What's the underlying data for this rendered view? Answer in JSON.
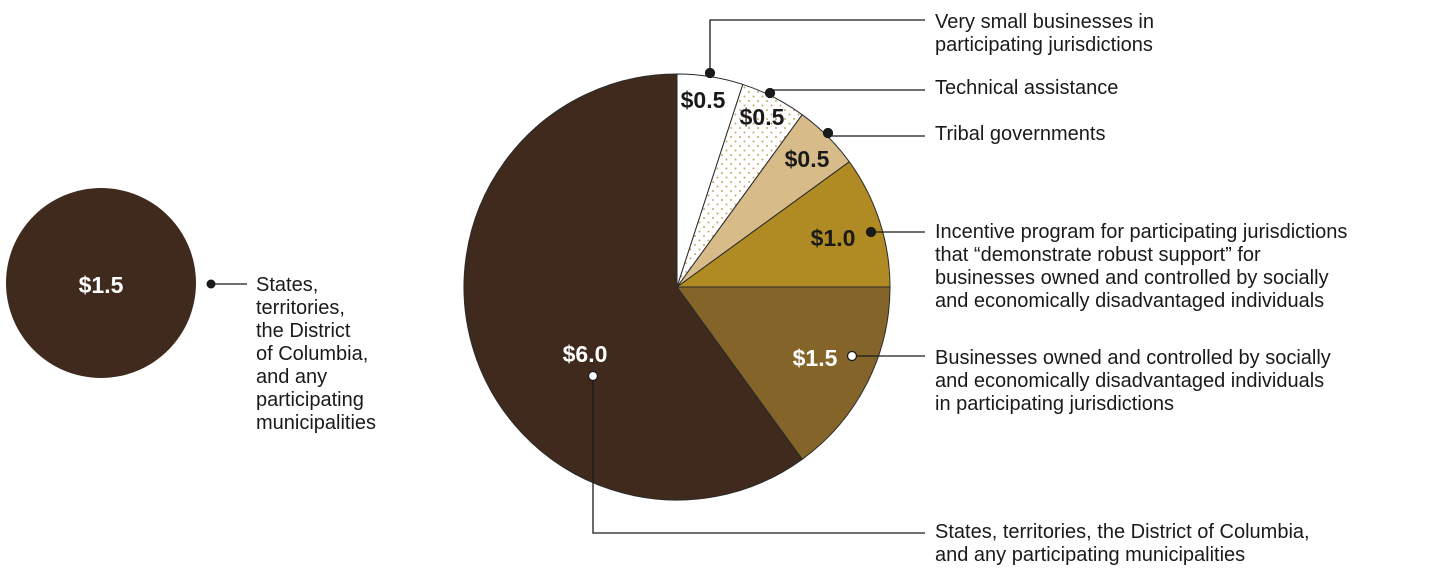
{
  "chart_data": [
    {
      "type": "pie",
      "unit": "$",
      "slices": [
        {
          "value_label": "$1.5",
          "value": 1.5,
          "color": "#3f2a1d",
          "label_color": "#ffffff",
          "label_lines": [
            "States,",
            "territories,",
            "the District",
            "of Columbia,",
            "and any",
            "participating",
            "municipalities"
          ]
        }
      ]
    },
    {
      "type": "pie",
      "unit": "$",
      "slices": [
        {
          "value_label": "$0.5",
          "value": 0.5,
          "color": "#ffffff",
          "pattern": "none",
          "label_color": "#1a1a1a",
          "marker_color": "#1a1a1a",
          "label_lines": [
            "Very small businesses in",
            "participating jurisdictions"
          ]
        },
        {
          "value_label": "$0.5",
          "value": 0.5,
          "color": "#ffffff",
          "pattern": "dots",
          "label_color": "#1a1a1a",
          "marker_color": "#1a1a1a",
          "label_lines": [
            "Technical assistance"
          ]
        },
        {
          "value_label": "$0.5",
          "value": 0.5,
          "color": "#d7bc8a",
          "pattern": "none",
          "label_color": "#1a1a1a",
          "marker_color": "#1a1a1a",
          "label_lines": [
            "Tribal governments"
          ]
        },
        {
          "value_label": "$1.0",
          "value": 1.0,
          "color": "#b08a22",
          "pattern": "none",
          "label_color": "#1a1a1a",
          "marker_color": "#1a1a1a",
          "label_lines": [
            "Incentive program for participating jurisdictions",
            "that “demonstrate robust support” for",
            "businesses owned and controlled by socially",
            "and economically disadvantaged individuals"
          ]
        },
        {
          "value_label": "$1.5",
          "value": 1.5,
          "color": "#85642a",
          "pattern": "none",
          "label_color": "#ffffff",
          "marker_color": "#ffffff",
          "label_lines": [
            "Businesses owned and controlled by socially",
            "and economically disadvantaged individuals",
            "in participating jurisdictions"
          ]
        },
        {
          "value_label": "$6.0",
          "value": 6.0,
          "color": "#3f2a1d",
          "pattern": "none",
          "label_color": "#ffffff",
          "marker_color": "#ffffff",
          "label_lines": [
            "States, territories, the District of Columbia,",
            "and any participating municipalities"
          ]
        }
      ]
    }
  ]
}
